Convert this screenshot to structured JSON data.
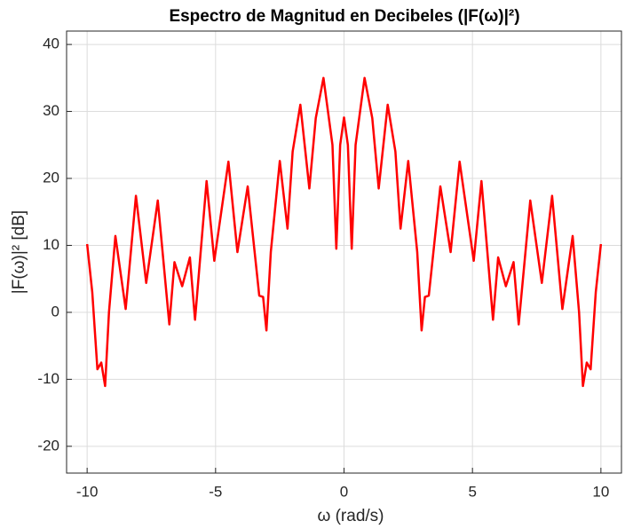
{
  "chart_data": {
    "type": "line",
    "title": "Espectro de Magnitud en Decibeles (|F(ω)|²)",
    "xlabel": "ω (rad/s)",
    "ylabel": "|F(ω)|² [dB]",
    "x": [
      -10,
      -9.8,
      -9.6,
      -9.45,
      -9.3,
      -9.15,
      -8.9,
      -8.5,
      -8.1,
      -7.7,
      -7.25,
      -6.8,
      -6.6,
      -6.3,
      -6.0,
      -5.8,
      -5.35,
      -5.05,
      -4.5,
      -4.15,
      -3.75,
      -3.3,
      -3.15,
      -3.02,
      -2.85,
      -2.5,
      -2.2,
      -2.0,
      -1.7,
      -1.35,
      -1.1,
      -0.8,
      -0.45,
      -0.3,
      -0.15,
      0,
      0.15,
      0.3,
      0.45,
      0.8,
      1.1,
      1.35,
      1.7,
      2.0,
      2.2,
      2.5,
      2.85,
      3.02,
      3.15,
      3.3,
      3.75,
      4.15,
      4.5,
      5.05,
      5.35,
      5.8,
      6.0,
      6.3,
      6.6,
      6.8,
      7.25,
      7.7,
      8.1,
      8.5,
      8.9,
      9.15,
      9.3,
      9.45,
      9.6,
      9.8,
      10
    ],
    "series": [
      {
        "color": "#ff0000",
        "values": [
          10.2,
          3,
          -8.5,
          -7.5,
          -11,
          0,
          11.4,
          0.5,
          17.4,
          4.4,
          16.7,
          -1.8,
          7.5,
          3.9,
          8.2,
          -1.1,
          19.6,
          7.7,
          22.5,
          9,
          18.8,
          2.5,
          2.3,
          -2.7,
          9,
          22.6,
          12.5,
          24,
          31,
          18.5,
          29,
          35,
          25,
          9.5,
          25,
          29.1,
          25,
          9.5,
          25,
          35,
          29,
          18.5,
          31,
          24,
          12.5,
          22.6,
          9,
          -2.7,
          2.3,
          2.5,
          18.8,
          9,
          22.5,
          7.7,
          19.6,
          -1.1,
          8.2,
          3.9,
          7.5,
          -1.8,
          16.7,
          4.4,
          17.4,
          0.5,
          11.4,
          0,
          -11,
          -7.5,
          -8.5,
          3,
          10.2
        ]
      }
    ],
    "xlim": [
      -10.8,
      10.8
    ],
    "ylim": [
      -24,
      42
    ],
    "xticks": [
      -10,
      -5,
      0,
      5,
      10
    ],
    "yticks": [
      -20,
      -10,
      0,
      10,
      20,
      30,
      40
    ],
    "grid": true
  }
}
